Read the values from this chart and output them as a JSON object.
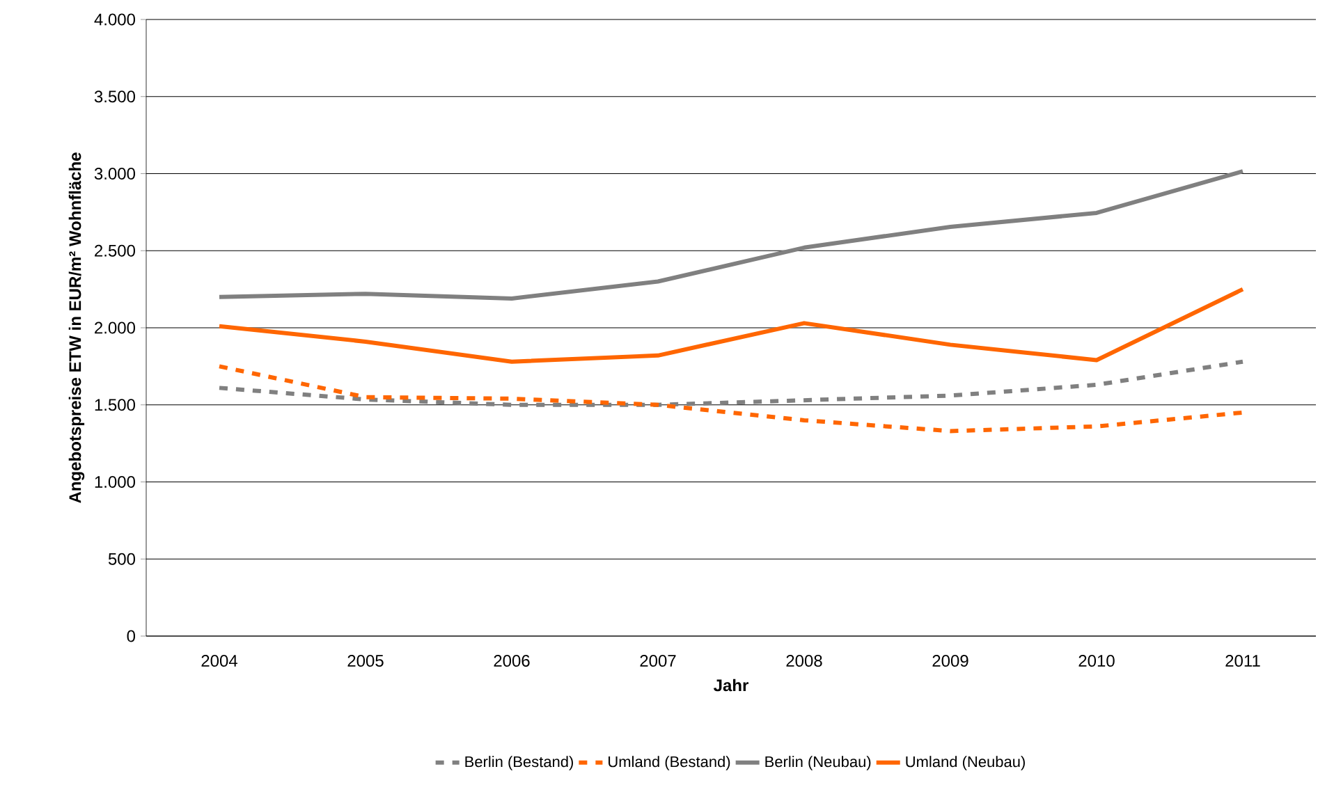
{
  "chart_data": {
    "type": "line",
    "xlabel": "Jahr",
    "ylabel": "Angebotspreise ETW in EUR/m² Wohnfläche",
    "categories": [
      "2004",
      "2005",
      "2006",
      "2007",
      "2008",
      "2009",
      "2010",
      "2011"
    ],
    "series": [
      {
        "name": "Berlin (Bestand)",
        "color": "#808080",
        "line_style": "dashed",
        "values": [
          1610,
          1535,
          1500,
          1500,
          1530,
          1560,
          1630,
          1780
        ]
      },
      {
        "name": "Umland (Bestand)",
        "color": "#ff6600",
        "line_style": "dashed",
        "values": [
          1750,
          1550,
          1540,
          1500,
          1400,
          1330,
          1360,
          1450
        ]
      },
      {
        "name": "Berlin (Neubau)",
        "color": "#808080",
        "line_style": "solid",
        "values": [
          2200,
          2220,
          2190,
          2300,
          2520,
          2655,
          2745,
          3015
        ]
      },
      {
        "name": "Umland (Neubau)",
        "color": "#ff6600",
        "line_style": "solid",
        "values": [
          2010,
          1910,
          1780,
          1820,
          2030,
          1890,
          1790,
          2250
        ]
      }
    ],
    "ylim": [
      0,
      4000
    ],
    "yticks": [
      {
        "value": 0,
        "label": "0"
      },
      {
        "value": 500,
        "label": "500"
      },
      {
        "value": 1000,
        "label": "1.000"
      },
      {
        "value": 1500,
        "label": "1.500"
      },
      {
        "value": 2000,
        "label": "2.000"
      },
      {
        "value": 2500,
        "label": "2.500"
      },
      {
        "value": 3000,
        "label": "3.000"
      },
      {
        "value": 3500,
        "label": "3.500"
      },
      {
        "value": 4000,
        "label": "4.000"
      }
    ],
    "grid": "y",
    "legend": "bottom"
  }
}
